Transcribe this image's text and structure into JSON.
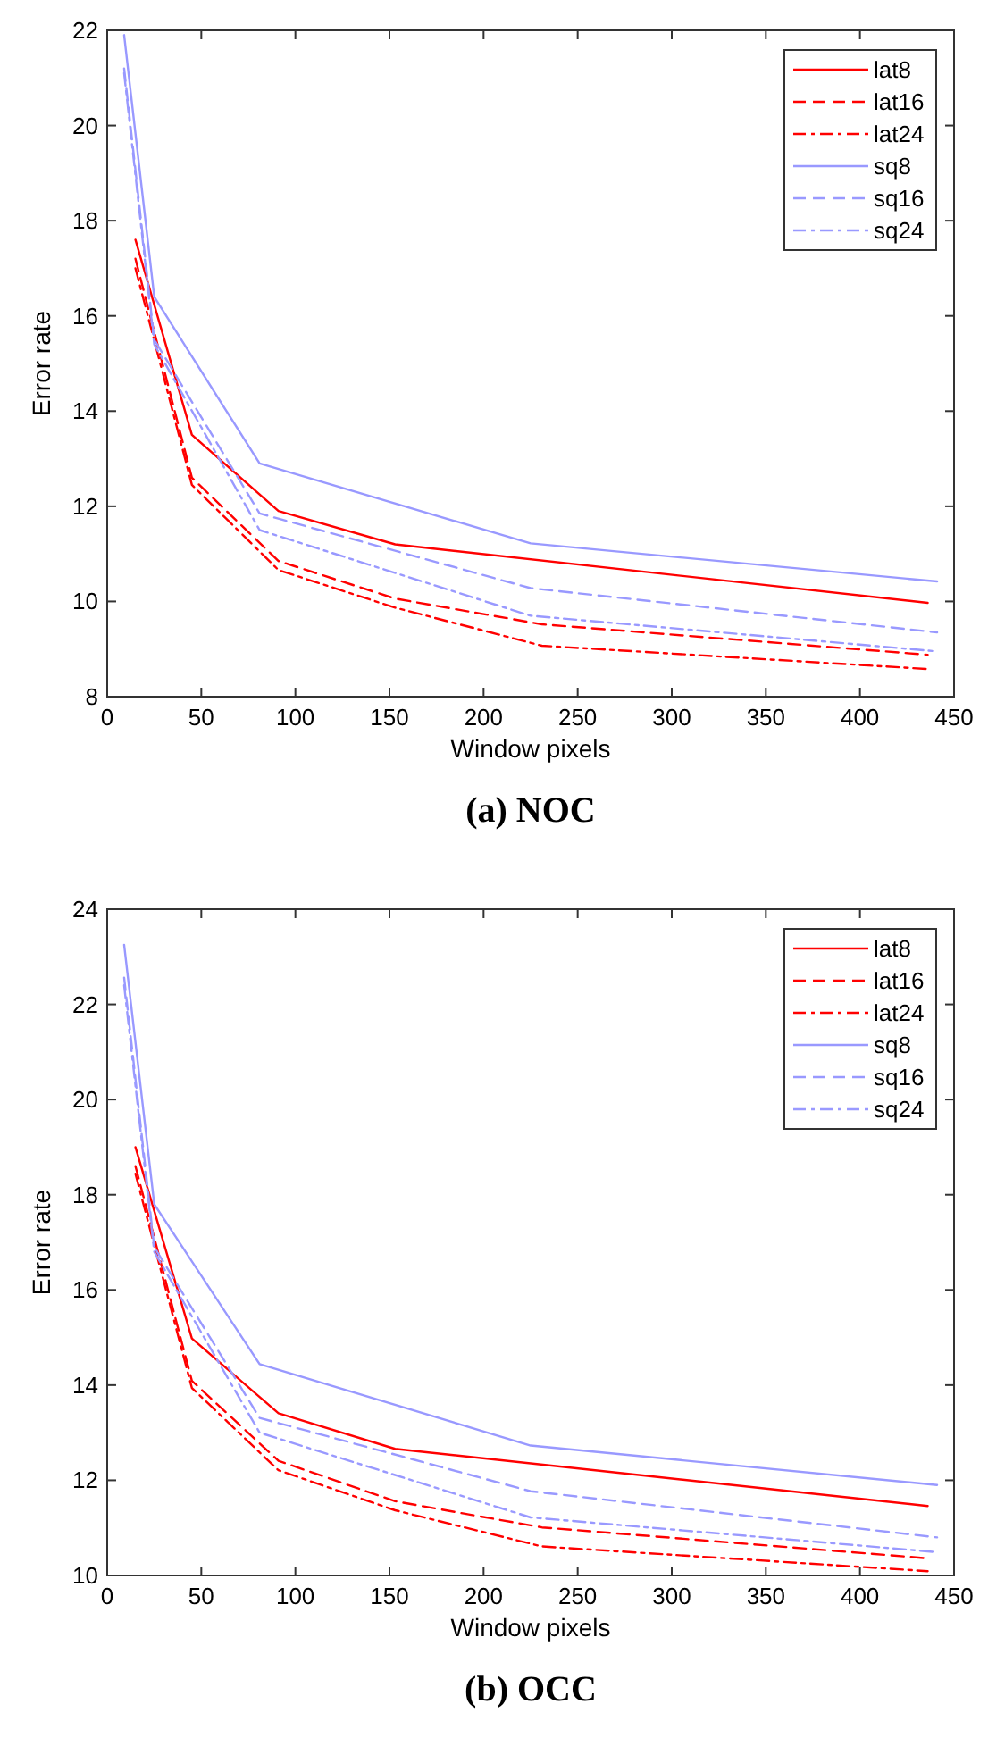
{
  "chart_data": [
    {
      "type": "line",
      "title": "(a) NOC",
      "xlabel": "Window pixels",
      "ylabel": "Error rate",
      "xlim": [
        0,
        450
      ],
      "ylim": [
        8,
        22
      ],
      "xticks": [
        0,
        50,
        100,
        150,
        200,
        250,
        300,
        350,
        400,
        450
      ],
      "yticks": [
        8,
        10,
        12,
        14,
        16,
        18,
        20,
        22
      ],
      "legend": "top right",
      "grid": false,
      "marker": "none",
      "series": [
        {
          "name": "lat8",
          "color": "#ff0000",
          "line_style": "solid",
          "x": [
            15,
            45,
            91,
            153,
            436
          ],
          "values": [
            17.6,
            13.5,
            11.9,
            11.2,
            9.97
          ]
        },
        {
          "name": "lat16",
          "color": "#ff0000",
          "line_style": "dashed",
          "x": [
            15,
            45,
            91,
            153,
            231,
            436
          ],
          "values": [
            17.2,
            12.6,
            10.85,
            10.06,
            9.52,
            8.88
          ]
        },
        {
          "name": "lat24",
          "color": "#ff0000",
          "line_style": "dashdot",
          "x": [
            15,
            45,
            91,
            153,
            231,
            436
          ],
          "values": [
            17.0,
            12.45,
            10.66,
            9.87,
            9.07,
            8.58
          ]
        },
        {
          "name": "sq8",
          "color": "#9999ff",
          "line_style": "solid",
          "x": [
            9,
            25,
            81,
            225,
            441
          ],
          "values": [
            21.9,
            16.4,
            12.9,
            11.22,
            10.42
          ]
        },
        {
          "name": "sq16",
          "color": "#9999ff",
          "line_style": "dashed",
          "x": [
            9,
            25,
            81,
            225,
            441
          ],
          "values": [
            21.2,
            15.5,
            11.85,
            10.28,
            9.35
          ]
        },
        {
          "name": "sq24",
          "color": "#9999ff",
          "line_style": "dashdot",
          "x": [
            9,
            25,
            81,
            225,
            441
          ],
          "values": [
            21.1,
            15.4,
            11.5,
            9.7,
            8.95
          ]
        }
      ]
    },
    {
      "type": "line",
      "title": "(b) OCC",
      "xlabel": "Window pixels",
      "ylabel": "Error rate",
      "xlim": [
        0,
        450
      ],
      "ylim": [
        10,
        24
      ],
      "xticks": [
        0,
        50,
        100,
        150,
        200,
        250,
        300,
        350,
        400,
        450
      ],
      "yticks": [
        10,
        12,
        14,
        16,
        18,
        20,
        22,
        24
      ],
      "legend": "top right",
      "grid": false,
      "marker": "none",
      "series": [
        {
          "name": "lat8",
          "color": "#ff0000",
          "line_style": "solid",
          "x": [
            15,
            45,
            91,
            153,
            436
          ],
          "values": [
            19.0,
            14.98,
            13.41,
            12.66,
            11.46
          ]
        },
        {
          "name": "lat16",
          "color": "#ff0000",
          "line_style": "dashed",
          "x": [
            15,
            45,
            91,
            153,
            231,
            436
          ],
          "values": [
            18.6,
            14.09,
            12.41,
            11.56,
            11.01,
            10.36
          ]
        },
        {
          "name": "lat24",
          "color": "#ff0000",
          "line_style": "dashdot",
          "x": [
            15,
            45,
            91,
            153,
            231,
            436
          ],
          "values": [
            18.44,
            13.94,
            12.21,
            11.37,
            10.61,
            10.09
          ]
        },
        {
          "name": "sq8",
          "color": "#9999ff",
          "line_style": "solid",
          "x": [
            9,
            25,
            81,
            225,
            441
          ],
          "values": [
            23.25,
            17.8,
            14.44,
            12.73,
            11.9
          ]
        },
        {
          "name": "sq16",
          "color": "#9999ff",
          "line_style": "dashed",
          "x": [
            9,
            25,
            81,
            225,
            441
          ],
          "values": [
            22.56,
            16.9,
            13.31,
            11.77,
            10.8
          ]
        },
        {
          "name": "sq24",
          "color": "#9999ff",
          "line_style": "dashdot",
          "x": [
            9,
            25,
            81,
            225,
            441
          ],
          "values": [
            22.4,
            16.8,
            13.0,
            11.22,
            10.49
          ]
        }
      ]
    }
  ]
}
